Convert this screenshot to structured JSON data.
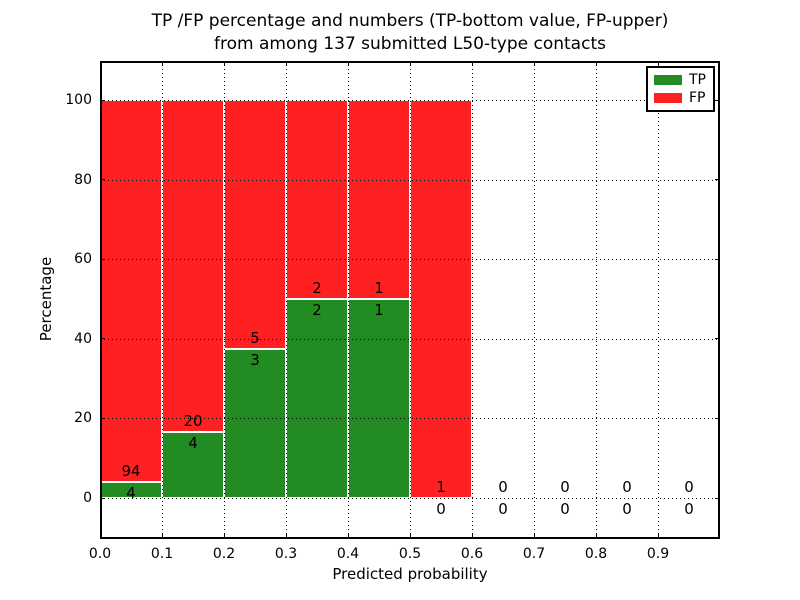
{
  "chart_data": {
    "type": "bar",
    "stacked": true,
    "title": "TP /FP percentage and numbers (TP-bottom value, FP-upper)\nfrom among 137 submitted L50-type contacts",
    "xlabel": "Predicted probability",
    "ylabel": "Percentage",
    "total_contacts": 137,
    "x_tick_labels": [
      "0.0",
      "0.1",
      "0.2",
      "0.3",
      "0.4",
      "0.5",
      "0.6",
      "0.7",
      "0.8",
      "0.9"
    ],
    "y_tick_labels": [
      "0",
      "20",
      "40",
      "60",
      "80",
      "100"
    ],
    "xlim": [
      0,
      1.0
    ],
    "ylim": [
      -10,
      110
    ],
    "grid": "dotted",
    "legend_position": "upper right",
    "legend": [
      {
        "series": "TP",
        "label": "TP",
        "color": "#228B22"
      },
      {
        "series": "FP",
        "label": "FP",
        "color": "#FF2121"
      }
    ],
    "bin_width": 0.1,
    "bins": [
      {
        "range": "0.0-0.1",
        "tp": 4,
        "fp": 94,
        "tp_pct": 4.08,
        "fp_pct": 95.92
      },
      {
        "range": "0.1-0.2",
        "tp": 4,
        "fp": 20,
        "tp_pct": 16.67,
        "fp_pct": 83.33
      },
      {
        "range": "0.2-0.3",
        "tp": 3,
        "fp": 5,
        "tp_pct": 37.5,
        "fp_pct": 62.5
      },
      {
        "range": "0.3-0.4",
        "tp": 2,
        "fp": 2,
        "tp_pct": 50,
        "fp_pct": 50
      },
      {
        "range": "0.4-0.5",
        "tp": 1,
        "fp": 1,
        "tp_pct": 50,
        "fp_pct": 50
      },
      {
        "range": "0.5-0.6",
        "tp": 0,
        "fp": 1,
        "tp_pct": 0,
        "fp_pct": 100
      },
      {
        "range": "0.6-0.7",
        "tp": 0,
        "fp": 0,
        "tp_pct": 0,
        "fp_pct": 0
      },
      {
        "range": "0.7-0.8",
        "tp": 0,
        "fp": 0,
        "tp_pct": 0,
        "fp_pct": 0
      },
      {
        "range": "0.8-0.9",
        "tp": 0,
        "fp": 0,
        "tp_pct": 0,
        "fp_pct": 0
      },
      {
        "range": "0.9-1.0",
        "tp": 0,
        "fp": 0,
        "tp_pct": 0,
        "fp_pct": 0
      }
    ]
  }
}
